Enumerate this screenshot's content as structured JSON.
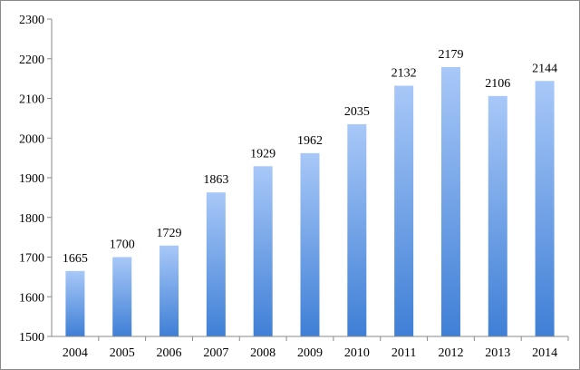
{
  "chart_data": {
    "type": "bar",
    "title": "",
    "xlabel": "",
    "ylabel": "",
    "categories": [
      "2004",
      "2005",
      "2006",
      "2007",
      "2008",
      "2009",
      "2010",
      "2011",
      "2012",
      "2013",
      "2014"
    ],
    "values": [
      1665,
      1700,
      1729,
      1863,
      1929,
      1962,
      2035,
      2132,
      2179,
      2106,
      2144
    ],
    "ylim": [
      1500,
      2300
    ],
    "yticks": [
      1500,
      1600,
      1700,
      1800,
      1900,
      2000,
      2100,
      2200,
      2300
    ],
    "grid": false,
    "legend": "none",
    "data_labels": true,
    "colors": {
      "bar_top": "#a8c8f8",
      "bar_bottom": "#3f7fd6",
      "axis": "#8a8a8a",
      "text": "#000000"
    }
  }
}
